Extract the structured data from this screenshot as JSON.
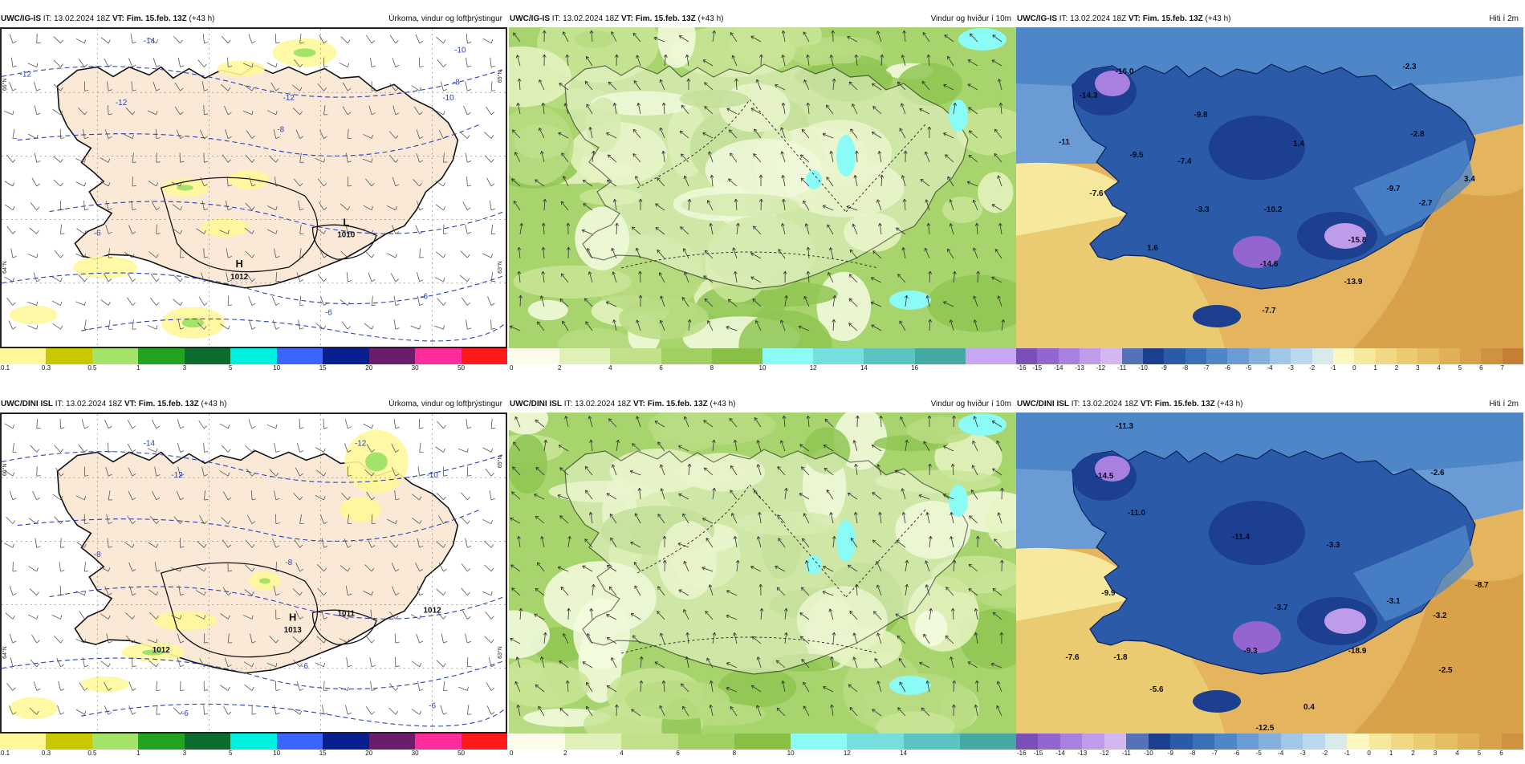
{
  "rows": [
    {
      "panels": [
        {
          "model": "UWC/IG-IS",
          "run": "IT: 13.02.2024 18Z",
          "vt": "VT: Fim. 15.feb. 13Z",
          "lead": "(+43 h)",
          "title": "Úrkoma, vindur og loftþrýstingur",
          "kind": "precip",
          "annotations": [
            "H",
            "1012",
            "L",
            "1010",
            "-14",
            "-12",
            "-10",
            "-8",
            "-6",
            "-6",
            "-6",
            "-8",
            "-12",
            "-12",
            "-10"
          ],
          "lat_labels": [
            "66°N",
            "64°N",
            "65°N",
            "63°N"
          ],
          "colorbar": {
            "colors": [
              "#fff79a",
              "#c8c800",
              "#a3e36a",
              "#22a322",
              "#0b6e2e",
              "#00f0e0",
              "#3a66ff",
              "#0a1f8f",
              "#6a1d6a",
              "#ff2d9b",
              "#ff1a1a"
            ],
            "labels": [
              "0.1",
              "0.3",
              "0.5",
              "1",
              "3",
              "5",
              "10",
              "15",
              "20",
              "30",
              "50"
            ]
          }
        },
        {
          "model": "UWC/IG-IS",
          "run": "IT: 13.02.2024 18Z",
          "vt": "VT: Fim. 15.feb. 13Z",
          "lead": "(+43 h)",
          "title": "Vindur og hviður í 10m",
          "kind": "wind",
          "colorbar": {
            "colors": [
              "#fbfdea",
              "#dff0b8",
              "#c1e08a",
              "#a2cf62",
              "#88bf44",
              "#8bfbf5",
              "#74dfde",
              "#5cc4c0",
              "#45a9a3",
              "#c7a7f2"
            ],
            "labels": [
              "0",
              "2",
              "4",
              "6",
              "8",
              "10",
              "12",
              "14",
              "16"
            ]
          }
        },
        {
          "model": "UWC/IG-IS",
          "run": "IT: 13.02.2024 18Z",
          "vt": "VT: Fim. 15.feb. 13Z",
          "lead": "(+43 h)",
          "title": "Hiti í 2m",
          "kind": "temp",
          "values": [
            "-16.0",
            "-14.3",
            "-11",
            "-9.5",
            "-9.8",
            "-7.4",
            "-7.6",
            "-3.3",
            "1.4",
            "-2.8",
            "-2.3",
            "-10.2",
            "-9.7",
            "-2.7",
            "3.4",
            "1.6",
            "-14.6",
            "-15.8",
            "-13.9",
            "-7.7"
          ],
          "colorbar": {
            "colors": [
              "#7a4fb8",
              "#9265cf",
              "#a880e0",
              "#bf9ce9",
              "#d3b8f0",
              "#5572b8",
              "#1c3f8f",
              "#2a5aa8",
              "#3b6fb8",
              "#4f86c8",
              "#6a9bd4",
              "#84b0de",
              "#a0c6e8",
              "#bcd8ee",
              "#d7ecea",
              "#fdf6c0",
              "#f6e89c",
              "#f0d884",
              "#eacb72",
              "#e5be64",
              "#dfb057",
              "#d9a24a",
              "#cf9240",
              "#c57f34"
            ],
            "labels": [
              "-16",
              "-15",
              "-14",
              "-13",
              "-12",
              "-11",
              "-10",
              "-9",
              "-8",
              "-7",
              "-6",
              "-5",
              "-4",
              "-3",
              "-2",
              "-1",
              "0",
              "1",
              "2",
              "3",
              "4",
              "5",
              "6",
              "7"
            ]
          }
        }
      ]
    },
    {
      "panels": [
        {
          "model": "UWC/DINI ISL",
          "run": "IT: 13.02.2024 18Z",
          "vt": "VT: Fim. 15.feb. 13Z",
          "lead": "(+43 h)",
          "title": "Úrkoma, vindur og loftþrýstingur",
          "kind": "precip",
          "annotations": [
            "H",
            "1013",
            "1011",
            "1012",
            "1012",
            "-14",
            "-12",
            "-10",
            "-8",
            "-8",
            "-6",
            "-6",
            "-6",
            "-12"
          ],
          "lat_labels": [
            "66°N",
            "64°N",
            "65°N",
            "63°N"
          ],
          "colorbar": {
            "colors": [
              "#fff79a",
              "#c8c800",
              "#a3e36a",
              "#22a322",
              "#0b6e2e",
              "#00f0e0",
              "#3a66ff",
              "#0a1f8f",
              "#6a1d6a",
              "#ff2d9b",
              "#ff1a1a"
            ],
            "labels": [
              "0.1",
              "0.3",
              "0.5",
              "1",
              "3",
              "5",
              "10",
              "15",
              "20",
              "30",
              "50"
            ]
          }
        },
        {
          "model": "UWC/DINI ISL",
          "run": "IT: 13.02.2024 18Z",
          "vt": "VT: Fim. 15.feb. 13Z",
          "lead": "(+43 h)",
          "title": "Vindur og hviður í 10m",
          "kind": "wind",
          "colorbar": {
            "colors": [
              "#fbfdea",
              "#dff0b8",
              "#c1e08a",
              "#a2cf62",
              "#88bf44",
              "#8bfbf5",
              "#74dfde",
              "#5cc4c0",
              "#45a9a3"
            ],
            "labels": [
              "0",
              "2",
              "4",
              "6",
              "8",
              "10",
              "12",
              "14"
            ]
          }
        },
        {
          "model": "UWC/DINI ISL",
          "run": "IT: 13.02.2024 18Z",
          "vt": "VT: Fim. 15.feb. 13Z",
          "lead": "(+43 h)",
          "title": "Hiti í 2m",
          "kind": "temp",
          "values": [
            "-11.3",
            "-14.5",
            "-11.0",
            "-11.4",
            "-3.3",
            "-2.6",
            "-9.9",
            "-8.7",
            "-7.6",
            "-1.8",
            "-3.7",
            "-3.1",
            "-9.3",
            "-3.2",
            "-5.6",
            "-18.9",
            "-2.5",
            "0.4",
            "-12.5"
          ],
          "colorbar": {
            "colors": [
              "#7a4fb8",
              "#9265cf",
              "#a880e0",
              "#bf9ce9",
              "#d3b8f0",
              "#5572b8",
              "#1c3f8f",
              "#2a5aa8",
              "#3b6fb8",
              "#4f86c8",
              "#6a9bd4",
              "#84b0de",
              "#a0c6e8",
              "#bcd8ee",
              "#d7ecea",
              "#fdf6c0",
              "#f6e89c",
              "#f0d884",
              "#eacb72",
              "#e5be64",
              "#dfb057",
              "#d9a24a",
              "#cf9240"
            ],
            "labels": [
              "-16",
              "-15",
              "-14",
              "-13",
              "-12",
              "-11",
              "-10",
              "-9",
              "-8",
              "-7",
              "-6",
              "-5",
              "-4",
              "-3",
              "-2",
              "-1",
              "0",
              "1",
              "2",
              "3",
              "4",
              "5",
              "6"
            ]
          }
        }
      ]
    }
  ]
}
